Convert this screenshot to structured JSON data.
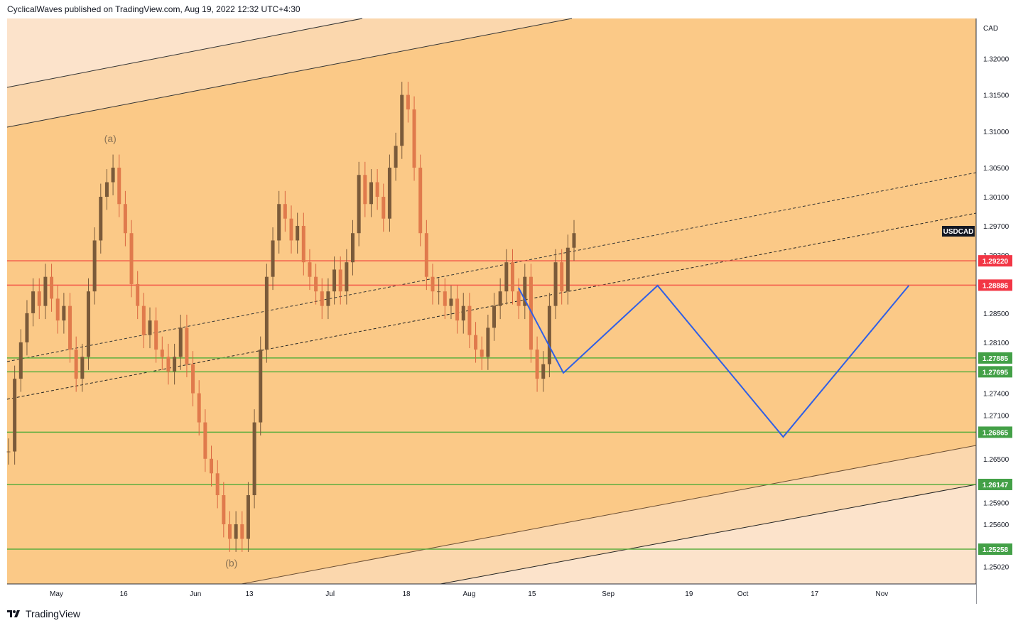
{
  "header": {
    "publisher_line": "CyclicalWaves published on TradingView.com, Aug 19, 2022 12:32 UTC+4:30"
  },
  "footer": {
    "brand": "TradingView",
    "logo_icon": "tradingview-logo-icon"
  },
  "colors": {
    "background_main": "#fbc987",
    "band_light": "#fbd7ad",
    "band_lightest": "#fce3cb",
    "candle": "#7a5a3a",
    "resistance_line": "#f45b4a",
    "support_line": "#5cae3f",
    "projection": "#2f5fe6",
    "label_red": "#f23645",
    "label_green": "#43a047",
    "label_dark": "#131722"
  },
  "chart_data": {
    "type": "candlestick",
    "symbol": "USDCAD",
    "currency": "CAD",
    "ylim": [
      1.2478,
      1.3255
    ],
    "y_ticks": [
      "1.32000",
      "1.31500",
      "1.31000",
      "1.30500",
      "1.30100",
      "1.29700",
      "1.29300",
      "1.28500",
      "1.28100",
      "1.27400",
      "1.27100",
      "1.26500",
      "1.25900",
      "1.25600",
      "1.25020"
    ],
    "x_ticks": [
      "May",
      "16",
      "Jun",
      "13",
      "Jul",
      "18",
      "Aug",
      "15",
      "Sep",
      "19",
      "Oct",
      "17",
      "Nov"
    ],
    "price_levels": [
      {
        "label": "1.29220",
        "value": 1.2922,
        "kind": "resistance"
      },
      {
        "label": "1.28886",
        "value": 1.28886,
        "kind": "resistance"
      },
      {
        "label": "1.27885",
        "value": 1.27885,
        "kind": "support"
      },
      {
        "label": "1.27695",
        "value": 1.27695,
        "kind": "support"
      },
      {
        "label": "1.26865",
        "value": 1.26865,
        "kind": "support"
      },
      {
        "label": "1.26147",
        "value": 1.26147,
        "kind": "support"
      },
      {
        "label": "1.25258",
        "value": 1.25258,
        "kind": "support"
      }
    ],
    "annotations": [
      {
        "text": "(a)",
        "date": "2022-05-13",
        "value": 1.3085
      },
      {
        "text": "(b)",
        "date": "2022-06-09",
        "value": 1.2502
      }
    ],
    "symbol_label": "USDCAD",
    "candles_close": [
      1.266,
      1.276,
      1.281,
      1.285,
      1.288,
      1.286,
      1.29,
      1.287,
      1.284,
      1.286,
      1.28,
      1.276,
      1.279,
      1.288,
      1.295,
      1.301,
      1.303,
      1.305,
      1.3,
      1.296,
      1.289,
      1.286,
      1.282,
      1.284,
      1.28,
      1.279,
      1.277,
      1.279,
      1.283,
      1.278,
      1.274,
      1.27,
      1.265,
      1.263,
      1.26,
      1.256,
      1.254,
      1.256,
      1.254,
      1.26,
      1.27,
      1.28,
      1.29,
      1.295,
      1.3,
      1.298,
      1.295,
      1.297,
      1.292,
      1.29,
      1.288,
      1.286,
      1.288,
      1.291,
      1.288,
      1.292,
      1.296,
      1.304,
      1.3,
      1.303,
      1.301,
      1.298,
      1.305,
      1.308,
      1.315,
      1.313,
      1.305,
      1.296,
      1.29,
      1.288,
      1.288,
      1.286,
      1.287,
      1.284,
      1.286,
      1.282,
      1.28,
      1.279,
      1.283,
      1.286,
      1.288,
      1.292,
      1.288,
      1.286,
      1.29,
      1.28,
      1.276,
      1.278,
      1.286,
      1.292,
      1.288,
      1.294,
      1.296
    ],
    "projection_path": [
      {
        "date": "2022-08-12",
        "value": 1.2885
      },
      {
        "date": "2022-08-22",
        "value": 1.2768
      },
      {
        "date": "2022-09-12",
        "value": 1.2888
      },
      {
        "date": "2022-10-10",
        "value": 1.268
      },
      {
        "date": "2022-11-07",
        "value": 1.2888
      }
    ]
  }
}
